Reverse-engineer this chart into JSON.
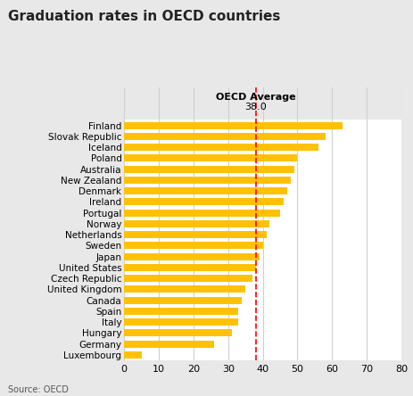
{
  "title": "Graduation rates in OECD countries",
  "source": "Source: OECD",
  "oecd_label": "OECD Average",
  "oecd_value": 38.0,
  "bar_color": "#FFC107",
  "categories": [
    "Luxembourg",
    "Germany",
    "Hungary",
    "Italy",
    "Spain",
    "Canada",
    "United Kingdom",
    "Czech Republic",
    "United States",
    "Japan",
    "Sweden",
    "Netherlands",
    "Norway",
    "Portugal",
    "Ireland",
    "Denmark",
    "New Zealand",
    "Australia",
    "Poland",
    "Iceland",
    "Slovak Republic",
    "Finland"
  ],
  "values": [
    5,
    26,
    31,
    33,
    33,
    34,
    35,
    37,
    38,
    39,
    40,
    41,
    42,
    45,
    46,
    47,
    48,
    49,
    50,
    56,
    58,
    63
  ],
  "xlim": [
    0,
    80
  ],
  "xticks": [
    0,
    10,
    20,
    30,
    40,
    50,
    60,
    70,
    80
  ],
  "fig_bg_color": "#e8e8e8",
  "plot_bg_color": "#e8e8e8",
  "row_color": "#ffffff",
  "grid_color": "#d0d0d0",
  "title_fontsize": 11,
  "label_fontsize": 7.5,
  "tick_fontsize": 8
}
